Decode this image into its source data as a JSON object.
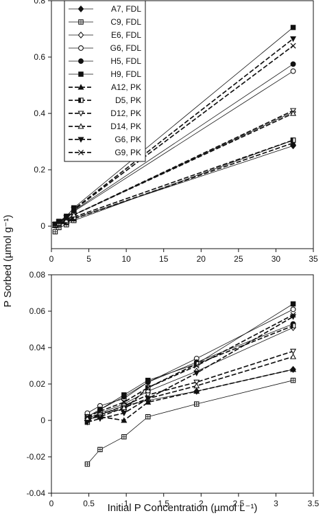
{
  "figure": {
    "ylabel": "P Sorbed (µmol g⁻¹)",
    "xlabel": "Initial P Concentration (µmol L⁻¹)"
  },
  "legend": {
    "entries": [
      {
        "label": "A7, FDL",
        "marker": "diamond-filled",
        "dash": "solid"
      },
      {
        "label": "C9, FDL",
        "marker": "square-cross",
        "dash": "solid"
      },
      {
        "label": "E6, FDL",
        "marker": "diamond-open",
        "dash": "solid"
      },
      {
        "label": "G6, FDL",
        "marker": "circle-open",
        "dash": "solid"
      },
      {
        "label": "H5, FDL",
        "marker": "circle-filled",
        "dash": "solid"
      },
      {
        "label": "H9, FDL",
        "marker": "square-filled",
        "dash": "solid"
      },
      {
        "label": "A12, PK",
        "marker": "triangle-filled",
        "dash": "dashed"
      },
      {
        "label": "D5, PK",
        "marker": "square-half",
        "dash": "dashed"
      },
      {
        "label": "D12, PK",
        "marker": "triangle-down-open",
        "dash": "dashed"
      },
      {
        "label": "D14, PK",
        "marker": "triangle-open",
        "dash": "dashed"
      },
      {
        "label": "G6, PK",
        "marker": "triangle-down-filled",
        "dash": "dashed"
      },
      {
        "label": "G9, PK",
        "marker": "x",
        "dash": "dashed"
      }
    ]
  },
  "chart_data": [
    {
      "type": "line",
      "title": "",
      "xlabel": "",
      "ylabel": "",
      "xlim": [
        0,
        35
      ],
      "ylim": [
        -0.08,
        0.8
      ],
      "x_ticks": [
        "0",
        "5",
        "10",
        "15",
        "20",
        "25",
        "30",
        "35"
      ],
      "y_ticks": [
        "0",
        "0.2",
        "0.4",
        "0.6",
        "0.8"
      ],
      "y_tick_values": [
        0,
        0.2,
        0.4,
        0.6,
        0.8
      ],
      "x": [
        0.5,
        1,
        2,
        3,
        32.3
      ],
      "series": [
        {
          "name": "A7, FDL",
          "values": [
            0.003,
            0.008,
            0.016,
            0.028,
            0.285
          ]
        },
        {
          "name": "C9, FDL",
          "values": [
            -0.02,
            -0.005,
            0.005,
            0.02,
            0.305
          ]
        },
        {
          "name": "E6, FDL",
          "values": [
            0.004,
            0.01,
            0.02,
            0.04,
            0.405
          ]
        },
        {
          "name": "G6, FDL",
          "values": [
            0.006,
            0.013,
            0.025,
            0.052,
            0.55
          ]
        },
        {
          "name": "H5, FDL",
          "values": [
            0.006,
            0.014,
            0.028,
            0.055,
            0.575
          ]
        },
        {
          "name": "H9, FDL",
          "values": [
            0.007,
            0.017,
            0.035,
            0.065,
            0.705
          ]
        },
        {
          "name": "A12, PK",
          "values": [
            0.002,
            0.006,
            0.012,
            0.026,
            0.295
          ]
        },
        {
          "name": "D5, PK",
          "values": [
            0.003,
            0.008,
            0.016,
            0.032,
            0.305
          ]
        },
        {
          "name": "D12, PK",
          "values": [
            0.004,
            0.01,
            0.02,
            0.04,
            0.41
          ]
        },
        {
          "name": "D14, PK",
          "values": [
            0.004,
            0.01,
            0.02,
            0.04,
            0.4
          ]
        },
        {
          "name": "G6, PK",
          "values": [
            0.006,
            0.015,
            0.03,
            0.06,
            0.665
          ]
        },
        {
          "name": "G9, PK",
          "values": [
            0.006,
            0.014,
            0.028,
            0.058,
            0.64
          ]
        }
      ],
      "grid": false,
      "legend": "top-left"
    },
    {
      "type": "line",
      "title": "",
      "xlabel": "Initial P Concentration (µmol L⁻¹)",
      "ylabel": "",
      "xlim": [
        0,
        3.5
      ],
      "ylim": [
        -0.04,
        0.08
      ],
      "x_ticks": [
        "0",
        "0.5",
        "1",
        "1.5",
        "2",
        "2.5",
        "3",
        "3.5"
      ],
      "y_ticks": [
        "-0.04",
        "-0.02",
        "0",
        "0.02",
        "0.04",
        "0.06",
        "0.08"
      ],
      "y_tick_values": [
        -0.04,
        -0.02,
        0,
        0.02,
        0.04,
        0.06,
        0.08
      ],
      "x": [
        0.48,
        0.65,
        0.97,
        1.29,
        1.94,
        3.23
      ],
      "series": [
        {
          "name": "A7, FDL",
          "values": [
            0.0,
            0.003,
            0.008,
            0.011,
            0.016,
            0.028
          ]
        },
        {
          "name": "C9, FDL",
          "values": [
            -0.024,
            -0.016,
            -0.009,
            0.002,
            0.009,
            0.022
          ]
        },
        {
          "name": "E6, FDL",
          "values": [
            0.001,
            0.004,
            0.009,
            0.016,
            0.027,
            0.051
          ]
        },
        {
          "name": "G6, FDL",
          "values": [
            0.004,
            0.008,
            0.012,
            0.021,
            0.034,
            0.061
          ]
        },
        {
          "name": "H5, FDL",
          "values": [
            0.002,
            0.006,
            0.013,
            0.021,
            0.032,
            0.053
          ]
        },
        {
          "name": "H9, FDL",
          "values": [
            0.002,
            0.006,
            0.014,
            0.022,
            0.031,
            0.064
          ]
        },
        {
          "name": "A12, PK",
          "values": [
            0.001,
            0.002,
            0.0,
            0.01,
            0.016,
            0.028
          ]
        },
        {
          "name": "D5, PK",
          "values": [
            -0.001,
            0.004,
            0.006,
            0.018,
            0.031,
            0.052
          ]
        },
        {
          "name": "D12, PK",
          "values": [
            0.002,
            0.003,
            0.008,
            0.014,
            0.021,
            0.038
          ]
        },
        {
          "name": "D14, PK",
          "values": [
            0.001,
            0.002,
            0.007,
            0.012,
            0.019,
            0.035
          ]
        },
        {
          "name": "G6, PK",
          "values": [
            -0.001,
            0.001,
            0.004,
            0.012,
            0.026,
            0.057
          ]
        },
        {
          "name": "G9, PK",
          "values": [
            0.002,
            0.005,
            0.01,
            0.018,
            0.03,
            0.058
          ]
        }
      ],
      "grid": false,
      "legend": "none"
    }
  ]
}
